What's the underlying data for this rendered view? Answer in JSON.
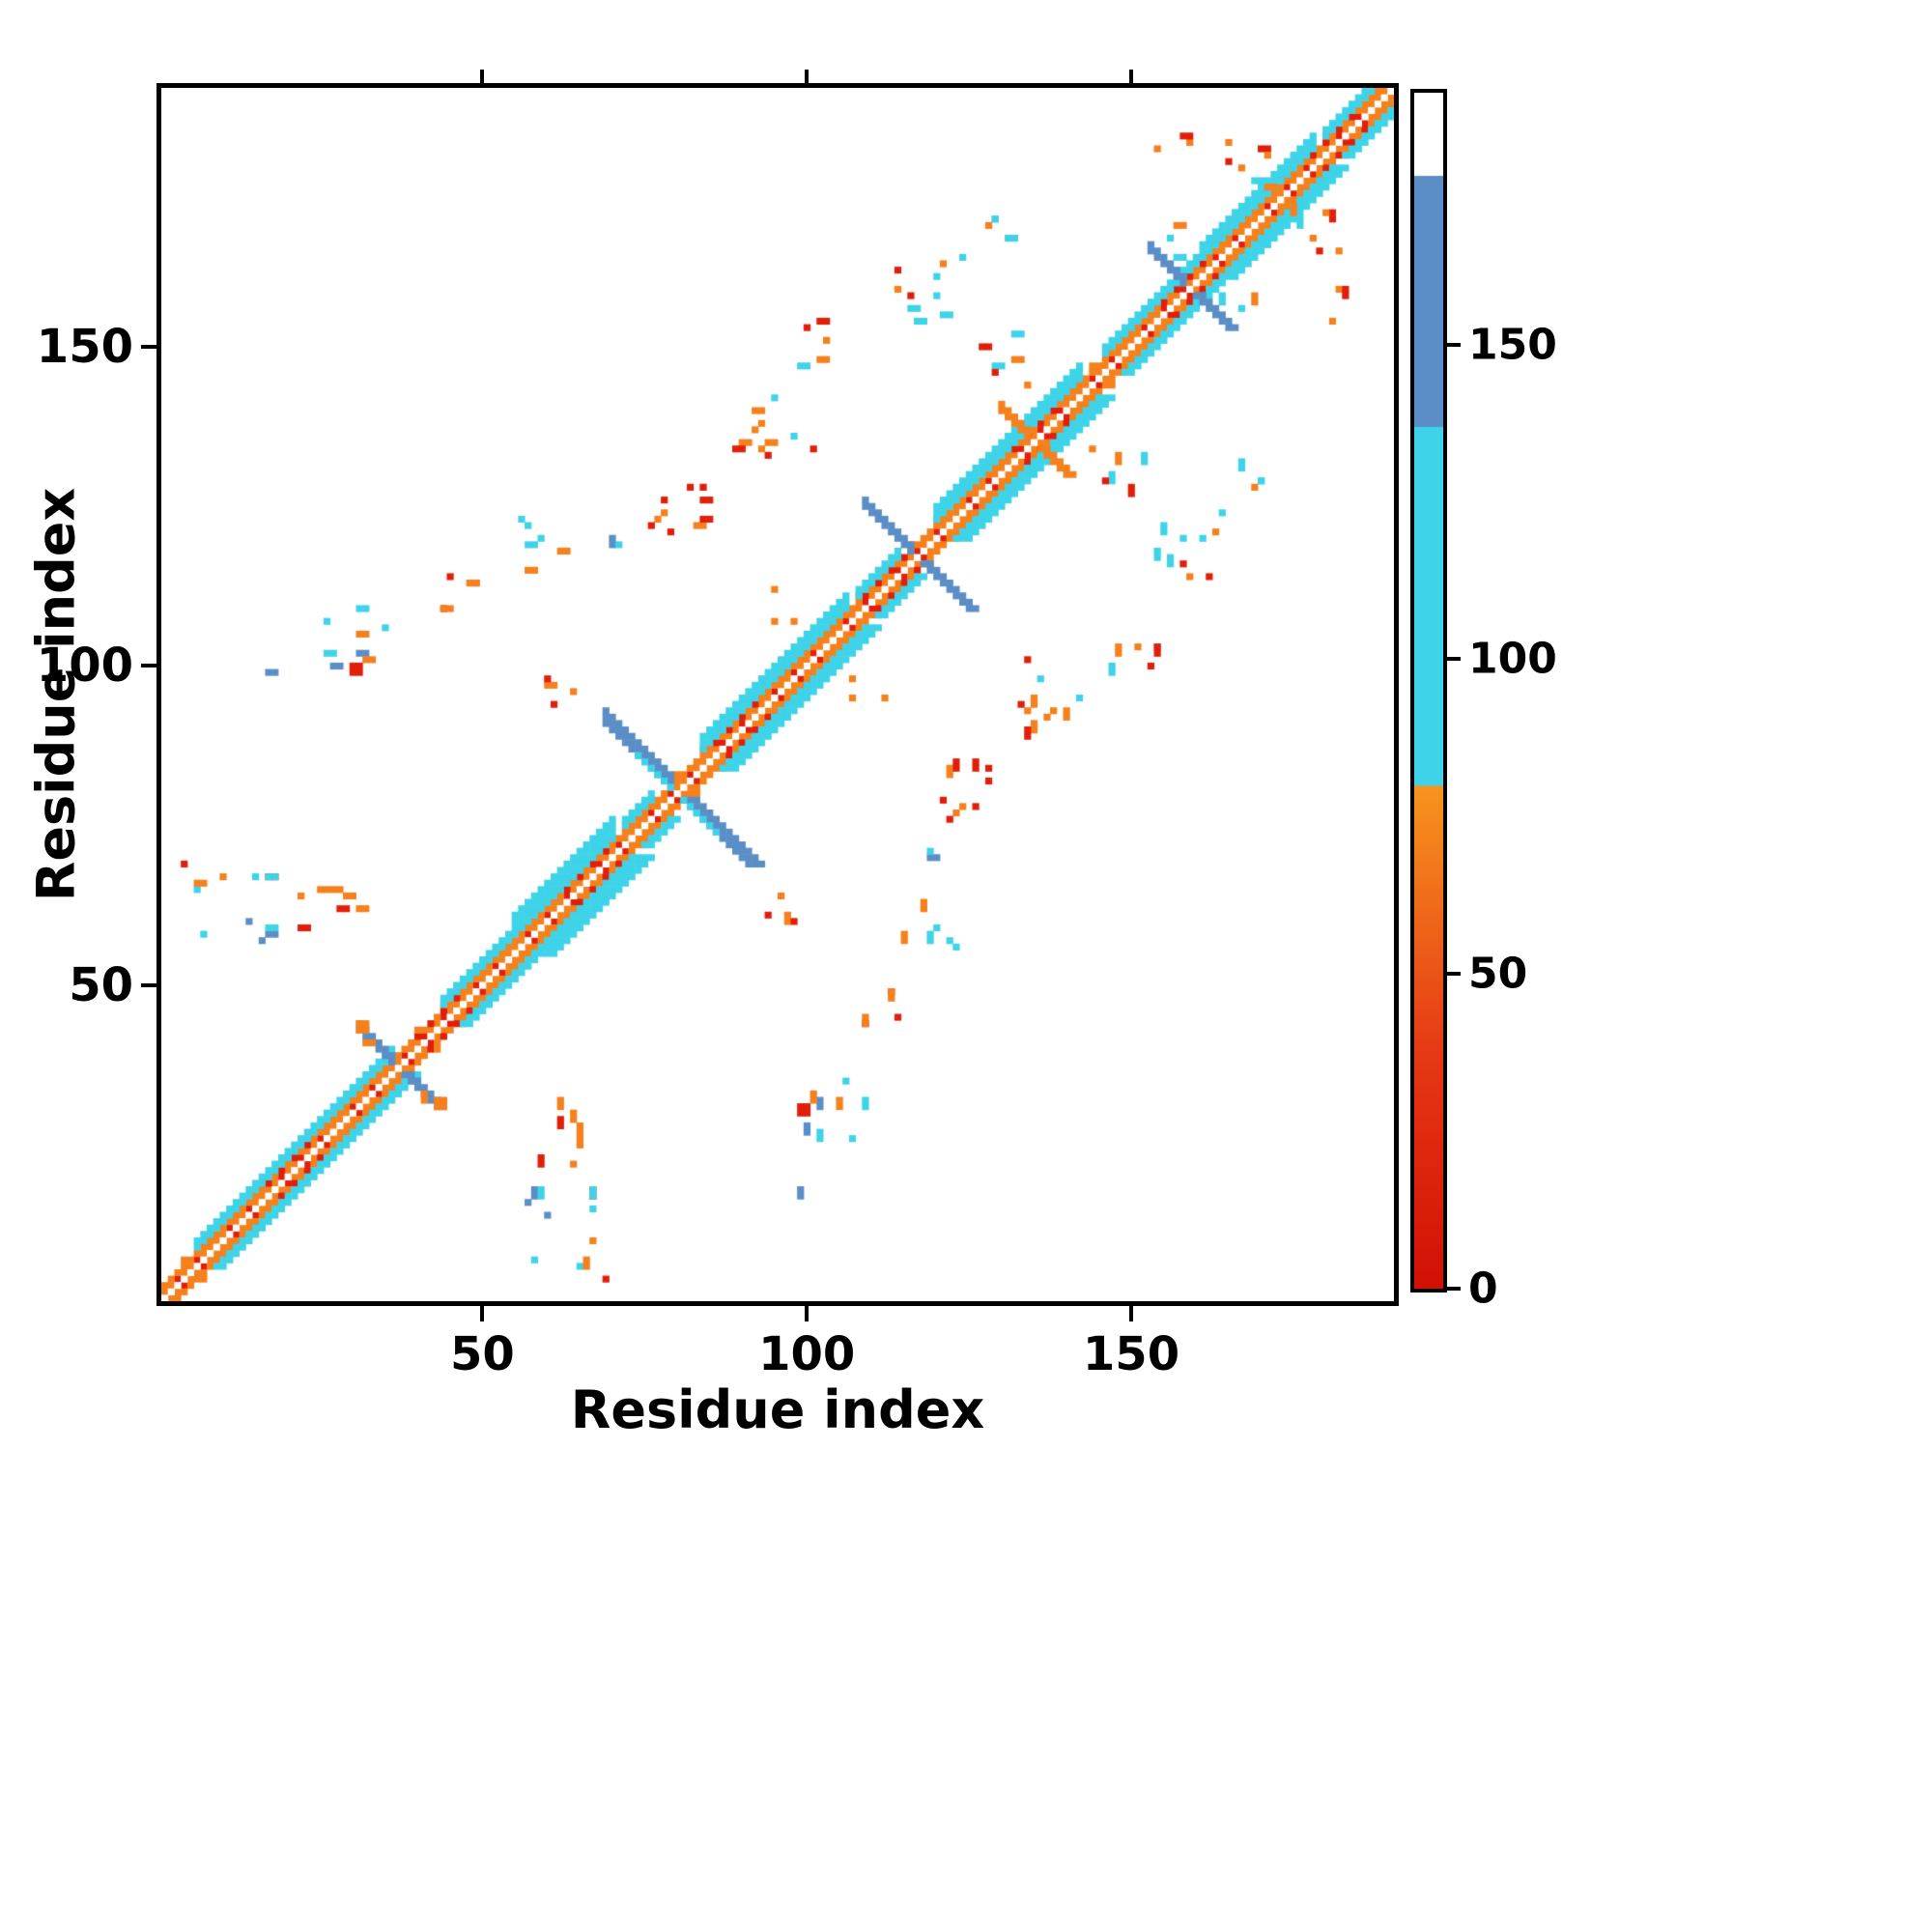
{
  "figure": {
    "background": "#ffffff"
  },
  "chart_data": {
    "type": "heatmap",
    "title": "",
    "xlabel": "Residue index",
    "ylabel": "Residue index",
    "x_range": [
      1,
      190
    ],
    "y_range": [
      1,
      190
    ],
    "x_ticks": [
      50,
      100,
      150
    ],
    "y_ticks": [
      50,
      100,
      150
    ],
    "grid": false,
    "legend": "colorbar-right",
    "symmetric": true,
    "n_residues": 190,
    "description": "Protein residue-residue contact map, symmetric about the diagonal; near-diagonal orange/red band with cyan flanking contacts, steel-blue beta-hairpin anti-diagonal streaks, and scattered long-range contact clusters.",
    "palette": {
      "red": "#e11e0a",
      "dark_red": "#c81408",
      "orange": "#f5801c",
      "light_orange": "#fb9e32",
      "cyan": "#3ed3e8",
      "blue": "#5b8ec6",
      "white": "#ffffff"
    },
    "colorbar": {
      "range": [
        0,
        190
      ],
      "ticks": [
        0,
        50,
        100,
        150
      ],
      "stops": [
        {
          "at": 0.0,
          "color": "#d21004"
        },
        {
          "at": 0.2,
          "color": "#e63914"
        },
        {
          "at": 0.42,
          "color": "#f7941e"
        },
        {
          "at": 0.421,
          "color": "#3ed3e8"
        },
        {
          "at": 0.72,
          "color": "#3ed3e8"
        },
        {
          "at": 0.721,
          "color": "#5b8ec6"
        },
        {
          "at": 0.93,
          "color": "#5b8ec6"
        },
        {
          "at": 0.931,
          "color": "#ffffff"
        },
        {
          "at": 1.0,
          "color": "#ffffff"
        }
      ]
    },
    "diagonal": {
      "core_offsets": [
        1,
        2
      ],
      "core_colors": [
        "orange",
        "red"
      ],
      "cyan_flank_segments": [
        {
          "from": 6,
          "to": 36,
          "width": 2
        },
        {
          "from": 44,
          "to": 54,
          "width": 2
        },
        {
          "from": 55,
          "to": 70,
          "width": 4
        },
        {
          "from": 72,
          "to": 76,
          "width": 2
        },
        {
          "from": 84,
          "to": 106,
          "width": 3
        },
        {
          "from": 108,
          "to": 114,
          "width": 2
        },
        {
          "from": 120,
          "to": 142,
          "width": 3
        },
        {
          "from": 146,
          "to": 160,
          "width": 2
        },
        {
          "from": 161,
          "to": 178,
          "width": 3
        },
        {
          "from": 180,
          "to": 188,
          "width": 2
        }
      ]
    },
    "hairpins": [
      {
        "center": 37,
        "arm": 6,
        "color": "blue",
        "thickness": 2
      },
      {
        "center": 80,
        "arm": 11,
        "color": "blue",
        "thickness": 3
      },
      {
        "center": 80,
        "arm": 6,
        "color": "cyan",
        "thickness": 1
      },
      {
        "center": 117,
        "arm": 8,
        "color": "blue",
        "thickness": 2
      },
      {
        "center": 135,
        "arm": 5,
        "color": "orange",
        "thickness": 2
      },
      {
        "center": 159,
        "arm": 6,
        "color": "blue",
        "thickness": 2
      }
    ],
    "contact_clusters": [
      {
        "x": 4,
        "y": 56,
        "w": 14,
        "h": 14,
        "count": 12,
        "colors": [
          "cyan",
          "blue",
          "red",
          "orange",
          "cyan"
        ]
      },
      {
        "x": 22,
        "y": 58,
        "w": 11,
        "h": 10,
        "count": 7,
        "colors": [
          "orange",
          "red",
          "orange"
        ]
      },
      {
        "x": 15,
        "y": 99,
        "w": 3,
        "h": 3,
        "count": 1,
        "colors": [
          "blue"
        ]
      },
      {
        "x": 26,
        "y": 99,
        "w": 10,
        "h": 11,
        "count": 10,
        "colors": [
          "cyan",
          "blue",
          "orange",
          "cyan",
          "red"
        ]
      },
      {
        "x": 31,
        "y": 41,
        "w": 7,
        "h": 6,
        "count": 3,
        "colors": [
          "orange"
        ]
      },
      {
        "x": 43,
        "y": 109,
        "w": 9,
        "h": 9,
        "count": 5,
        "colors": [
          "red",
          "orange"
        ]
      },
      {
        "x": 55,
        "y": 115,
        "w": 11,
        "h": 11,
        "count": 6,
        "colors": [
          "cyan",
          "orange",
          "cyan"
        ]
      },
      {
        "x": 59,
        "y": 94,
        "w": 7,
        "h": 9,
        "count": 4,
        "colors": [
          "orange",
          "red"
        ]
      },
      {
        "x": 69,
        "y": 119,
        "w": 6,
        "h": 6,
        "count": 3,
        "colors": [
          "blue",
          "cyan"
        ]
      },
      {
        "x": 75,
        "y": 121,
        "w": 10,
        "h": 8,
        "count": 10,
        "colors": [
          "red",
          "red",
          "orange"
        ]
      },
      {
        "x": 88,
        "y": 133,
        "w": 14,
        "h": 10,
        "count": 11,
        "colors": [
          "orange",
          "red",
          "orange",
          "cyan"
        ]
      },
      {
        "x": 92,
        "y": 107,
        "w": 7,
        "h": 6,
        "count": 3,
        "colors": [
          "orange"
        ]
      },
      {
        "x": 98,
        "y": 147,
        "w": 9,
        "h": 8,
        "count": 6,
        "colors": [
          "orange",
          "cyan",
          "red"
        ]
      },
      {
        "x": 114,
        "y": 153,
        "w": 12,
        "h": 11,
        "count": 9,
        "colors": [
          "cyan",
          "orange",
          "red",
          "cyan"
        ]
      },
      {
        "x": 123,
        "y": 163,
        "w": 9,
        "h": 8,
        "count": 5,
        "colors": [
          "cyan",
          "cyan",
          "orange"
        ]
      },
      {
        "x": 126,
        "y": 144,
        "w": 9,
        "h": 9,
        "count": 6,
        "colors": [
          "orange",
          "cyan",
          "red"
        ]
      },
      {
        "x": 152,
        "y": 163,
        "w": 7,
        "h": 7,
        "count": 3,
        "colors": [
          "cyan",
          "orange"
        ]
      },
      {
        "x": 153,
        "y": 176,
        "w": 7,
        "h": 8,
        "count": 3,
        "colors": [
          "orange",
          "red"
        ]
      },
      {
        "x": 160,
        "y": 169,
        "w": 12,
        "h": 14,
        "count": 8,
        "colors": [
          "orange",
          "red",
          "cyan",
          "orange"
        ]
      }
    ]
  }
}
